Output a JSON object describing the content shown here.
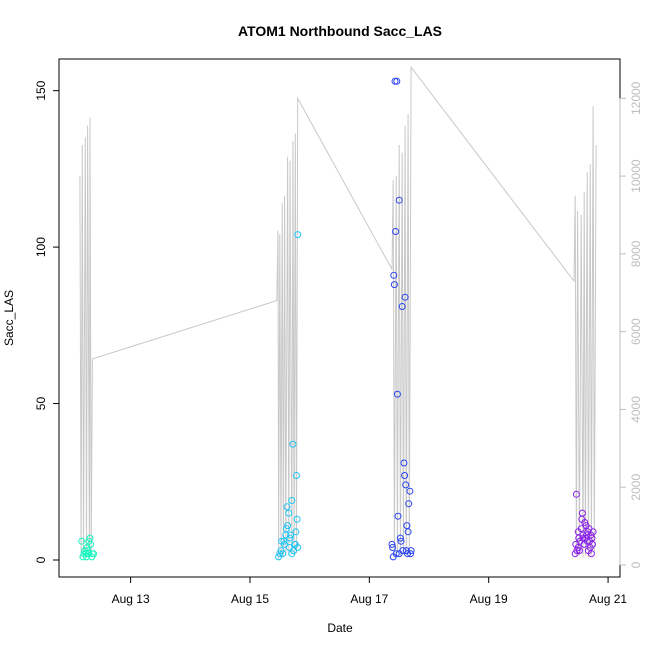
{
  "chart_data": {
    "type": "scatter",
    "title": "ATOM1 Northbound Sacc_LAS",
    "xlabel": "Date",
    "ylabel": "Sacc_LAS",
    "x_ticks": [
      "Aug 13",
      "Aug 15",
      "Aug 17",
      "Aug 19",
      "Aug 21"
    ],
    "x_tick_days": [
      13,
      15,
      17,
      19,
      21
    ],
    "xlim": [
      11.8,
      21.2
    ],
    "ylim": [
      0,
      155
    ],
    "y_ticks": [
      0,
      50,
      100,
      150
    ],
    "y2lim": [
      0,
      12600
    ],
    "y2_ticks": [
      0,
      2000,
      4000,
      6000,
      8000,
      10000,
      12000
    ],
    "colors": {
      "cluster1": "#1ef5c0",
      "cluster2": "#22c4f5",
      "cluster3": "#2b44f0",
      "cluster4": "#8a22e8",
      "line": "#c8c8c8",
      "right_axis": "#bebebe"
    },
    "series": [
      {
        "color": "#1ef5c0",
        "points": [
          [
            12.18,
            6
          ],
          [
            12.2,
            1
          ],
          [
            12.22,
            2
          ],
          [
            12.23,
            3
          ],
          [
            12.25,
            2
          ],
          [
            12.26,
            1
          ],
          [
            12.27,
            4
          ],
          [
            12.28,
            3
          ],
          [
            12.3,
            6
          ],
          [
            12.3,
            2
          ],
          [
            12.32,
            7
          ],
          [
            12.33,
            5
          ],
          [
            12.35,
            1
          ],
          [
            12.36,
            2
          ],
          [
            12.38,
            2
          ]
        ]
      },
      {
        "color": "#22c4f5",
        "points": [
          [
            15.48,
            1
          ],
          [
            15.5,
            2
          ],
          [
            15.52,
            3
          ],
          [
            15.53,
            6
          ],
          [
            15.55,
            2
          ],
          [
            15.57,
            6
          ],
          [
            15.58,
            5
          ],
          [
            15.6,
            8
          ],
          [
            15.61,
            10
          ],
          [
            15.62,
            17
          ],
          [
            15.63,
            11
          ],
          [
            15.65,
            15
          ],
          [
            15.66,
            4
          ],
          [
            15.67,
            7
          ],
          [
            15.68,
            8
          ],
          [
            15.7,
            2
          ],
          [
            15.7,
            19
          ],
          [
            15.72,
            37
          ],
          [
            15.73,
            3
          ],
          [
            15.75,
            5
          ],
          [
            15.76,
            5
          ],
          [
            15.77,
            9
          ],
          [
            15.78,
            27
          ],
          [
            15.79,
            13
          ],
          [
            15.8,
            4
          ],
          [
            15.8,
            104
          ]
        ]
      },
      {
        "color": "#2b44f0",
        "points": [
          [
            17.38,
            5
          ],
          [
            17.39,
            4
          ],
          [
            17.4,
            1
          ],
          [
            17.41,
            91
          ],
          [
            17.42,
            88
          ],
          [
            17.43,
            153
          ],
          [
            17.44,
            105
          ],
          [
            17.45,
            2
          ],
          [
            17.46,
            153
          ],
          [
            17.47,
            53
          ],
          [
            17.48,
            14
          ],
          [
            17.5,
            2
          ],
          [
            17.5,
            115
          ],
          [
            17.52,
            7
          ],
          [
            17.53,
            6
          ],
          [
            17.55,
            81
          ],
          [
            17.56,
            3
          ],
          [
            17.58,
            31
          ],
          [
            17.59,
            27
          ],
          [
            17.6,
            84
          ],
          [
            17.61,
            24
          ],
          [
            17.62,
            3
          ],
          [
            17.63,
            11
          ],
          [
            17.64,
            2
          ],
          [
            17.65,
            9
          ],
          [
            17.66,
            18
          ],
          [
            17.68,
            22
          ],
          [
            17.69,
            2
          ],
          [
            17.7,
            3
          ]
        ]
      },
      {
        "color": "#8a22e8",
        "points": [
          [
            20.45,
            2
          ],
          [
            20.46,
            5
          ],
          [
            20.47,
            21
          ],
          [
            20.48,
            3
          ],
          [
            20.5,
            4
          ],
          [
            20.5,
            9
          ],
          [
            20.51,
            7
          ],
          [
            20.52,
            3
          ],
          [
            20.53,
            6
          ],
          [
            20.55,
            10
          ],
          [
            20.56,
            13
          ],
          [
            20.57,
            15
          ],
          [
            20.58,
            8
          ],
          [
            20.58,
            7
          ],
          [
            20.6,
            5
          ],
          [
            20.61,
            12
          ],
          [
            20.62,
            7
          ],
          [
            20.63,
            11
          ],
          [
            20.64,
            8
          ],
          [
            20.65,
            6
          ],
          [
            20.66,
            9
          ],
          [
            20.67,
            3
          ],
          [
            20.68,
            10
          ],
          [
            20.69,
            6
          ],
          [
            20.7,
            4
          ],
          [
            20.71,
            8
          ],
          [
            20.72,
            2
          ],
          [
            20.73,
            7
          ],
          [
            20.74,
            5
          ],
          [
            20.75,
            9
          ]
        ]
      }
    ],
    "line_series": {
      "points": [
        [
          12.15,
          10000
        ],
        [
          12.17,
          200
        ],
        [
          12.19,
          10800
        ],
        [
          12.21,
          300
        ],
        [
          12.24,
          11000
        ],
        [
          12.26,
          200
        ],
        [
          12.28,
          11300
        ],
        [
          12.31,
          250
        ],
        [
          12.32,
          11500
        ],
        [
          12.34,
          300
        ],
        [
          12.36,
          5300
        ],
        [
          15.45,
          6800
        ],
        [
          15.47,
          8600
        ],
        [
          15.48,
          150
        ],
        [
          15.5,
          8500
        ],
        [
          15.52,
          200
        ],
        [
          15.54,
          9300
        ],
        [
          15.56,
          200
        ],
        [
          15.58,
          9500
        ],
        [
          15.6,
          250
        ],
        [
          15.63,
          10500
        ],
        [
          15.65,
          250
        ],
        [
          15.67,
          10400
        ],
        [
          15.7,
          300
        ],
        [
          15.72,
          10900
        ],
        [
          15.74,
          250
        ],
        [
          15.76,
          11100
        ],
        [
          15.78,
          300
        ],
        [
          15.8,
          12000
        ],
        [
          17.38,
          7600
        ],
        [
          17.4,
          9900
        ],
        [
          17.42,
          200
        ],
        [
          17.45,
          10000
        ],
        [
          17.47,
          300
        ],
        [
          17.5,
          10800
        ],
        [
          17.52,
          200
        ],
        [
          17.55,
          10600
        ],
        [
          17.57,
          300
        ],
        [
          17.6,
          11300
        ],
        [
          17.62,
          250
        ],
        [
          17.65,
          11600
        ],
        [
          17.67,
          300
        ],
        [
          17.7,
          12800
        ],
        [
          20.43,
          7300
        ],
        [
          20.45,
          9500
        ],
        [
          20.47,
          200
        ],
        [
          20.49,
          9100
        ],
        [
          20.52,
          250
        ],
        [
          20.55,
          9000
        ],
        [
          20.58,
          200
        ],
        [
          20.6,
          9600
        ],
        [
          20.62,
          250
        ],
        [
          20.65,
          10100
        ],
        [
          20.67,
          200
        ],
        [
          20.7,
          10300
        ],
        [
          20.72,
          250
        ],
        [
          20.75,
          11800
        ],
        [
          20.77,
          300
        ],
        [
          20.8,
          10800
        ]
      ]
    }
  }
}
